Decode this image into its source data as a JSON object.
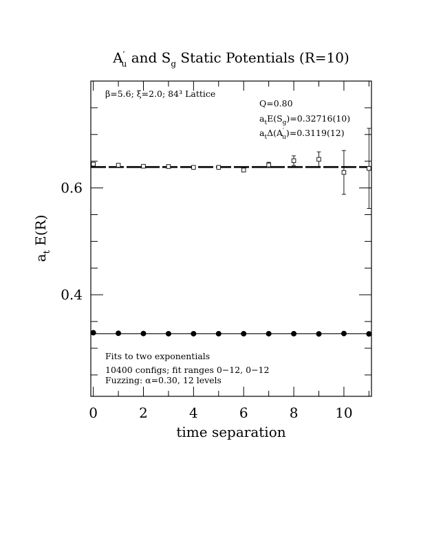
{
  "chart_data": {
    "type": "scatter",
    "title": {
      "p1": "A",
      "p1_sup": "′",
      "p1_sub": "u",
      "p2": " and S",
      "p2_sub": "g",
      "p3": " Static Potentials (R=10)"
    },
    "xlabel": "time separation",
    "ylabel": {
      "a": "a",
      "sub": "t",
      "rest": " E(R)"
    },
    "xlim": [
      -0.1,
      11.1
    ],
    "ylim": [
      0.21,
      0.8
    ],
    "x_ticks": [
      0,
      2,
      4,
      6,
      8,
      10
    ],
    "x_tick_labels": [
      "0",
      "2",
      "4",
      "6",
      "8",
      "10"
    ],
    "y_ticks": [
      0.4,
      0.6
    ],
    "y_tick_labels": [
      "0.4",
      "0.6"
    ],
    "annotations": {
      "lattice": "β=5.6; ξ=2.0; 84³ Lattice",
      "q": "Q=0.80",
      "energy_sg": {
        "a": "a",
        "sub": "t",
        "mid": "E(S",
        "sub2": "g",
        "rest": ")=0.32716(10)"
      },
      "energy_au": {
        "a": "a",
        "sub": "t",
        "mid": "Δ(A",
        "sub2": "u",
        "sup2": "′",
        "rest": ")=0.3119(12)"
      },
      "fits": "Fits to two exponentials",
      "configs": "10400 configs; fit ranges 0−12, 0−12",
      "fuzzing": "Fuzzing: α=0.30, 12 levels"
    },
    "fit_lines": [
      {
        "y": 0.6391,
        "style": "dashed"
      },
      {
        "y": 0.32716,
        "style": "solid"
      }
    ],
    "series": [
      {
        "marker": "open-square",
        "x": [
          0,
          1,
          2,
          3,
          4,
          5,
          6,
          7,
          8,
          9,
          10,
          11
        ],
        "y": [
          0.6445,
          0.6425,
          0.6405,
          0.64,
          0.6385,
          0.6385,
          0.6335,
          0.643,
          0.651,
          0.6535,
          0.629,
          0.6365
        ],
        "err": [
          0.0015,
          0.002,
          0.0015,
          0.0015,
          0.0015,
          0.002,
          0.003,
          0.005,
          0.009,
          0.014,
          0.041,
          0.075
        ]
      },
      {
        "marker": "filled-circle",
        "x": [
          0,
          1,
          2,
          3,
          4,
          5,
          6,
          7,
          8,
          9,
          10,
          11
        ],
        "y": [
          0.329,
          0.328,
          0.3275,
          0.3272,
          0.3272,
          0.3272,
          0.3272,
          0.3272,
          0.3272,
          0.3268,
          0.3275,
          0.3268
        ],
        "err": [
          0.0005,
          0.0005,
          0.0005,
          0.0005,
          0.0005,
          0.0005,
          0.0005,
          0.0005,
          0.0008,
          0.001,
          0.0015,
          0.002
        ]
      }
    ]
  }
}
